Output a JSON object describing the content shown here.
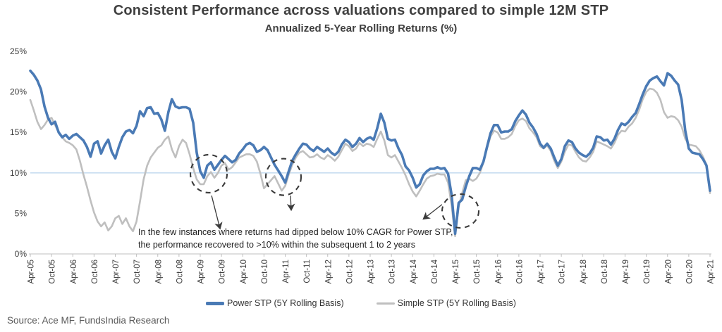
{
  "header": {
    "title": "Consistent Performance across valuations compared to simple 12M STP",
    "subtitle": "Annualized 5-Year Rolling Returns (%)"
  },
  "annotation": {
    "line1": "In the few instances where returns had dipped below 10% CAGR for Power STP,",
    "line2": "the performance recovered to >10% within the subsequent 1 to 2 years"
  },
  "legend": {
    "power_label": "Power STP  (5Y Rolling Basis)",
    "simple_label": "Simple STP (5Y Rolling Basis)"
  },
  "source": "Source: Ace MF, FundsIndia Research",
  "colors": {
    "power": "#4A7AB5",
    "simple": "#BFBFBF",
    "reference_line": "#BDD7EE",
    "axis": "#BFBFBF",
    "text": "#404040",
    "annotation_ink": "#3A3A3A"
  },
  "chart_data": {
    "type": "line",
    "title": "Consistent Performance across valuations compared to simple 12M STP",
    "subtitle": "Annualized 5-Year Rolling Returns (%)",
    "x_unit": "months (monthly observations, Apr-2005 to Apr-2021)",
    "x_tick_labels": [
      "Apr-05",
      "Oct-05",
      "Apr-06",
      "Oct-06",
      "Apr-07",
      "Oct-07",
      "Apr-08",
      "Oct-08",
      "Apr-09",
      "Oct-09",
      "Apr-10",
      "Oct-10",
      "Apr-11",
      "Oct-11",
      "Apr-12",
      "Oct-12",
      "Apr-13",
      "Oct-13",
      "Apr-14",
      "Oct-14",
      "Apr-15",
      "Oct-15",
      "Apr-16",
      "Oct-16",
      "Apr-17",
      "Oct-17",
      "Apr-18",
      "Oct-18",
      "Apr-19",
      "Oct-19",
      "Apr-20",
      "Oct-20",
      "Apr-21"
    ],
    "months_per_tick": 6,
    "y_ticks": [
      0,
      5,
      10,
      15,
      20,
      25
    ],
    "y_tick_suffix": "%",
    "ylim": [
      0,
      25
    ],
    "reference_line_value": 10,
    "grid": "none",
    "legend_position": "bottom",
    "series": [
      {
        "name": "Power STP  (5Y Rolling Basis)",
        "color": "#4A7AB5",
        "stroke_width": 3.6,
        "values": [
          22.6,
          22.1,
          21.4,
          20.3,
          18.2,
          16.8,
          16.0,
          16.3,
          15.0,
          14.4,
          14.7,
          14.2,
          14.6,
          14.8,
          14.4,
          14.0,
          13.2,
          12.0,
          13.6,
          13.9,
          12.4,
          13.4,
          14.1,
          12.6,
          11.8,
          13.2,
          14.4,
          15.1,
          15.3,
          14.9,
          15.8,
          17.6,
          17.0,
          18.0,
          18.1,
          17.3,
          17.4,
          16.6,
          15.2,
          17.5,
          19.1,
          18.2,
          18.0,
          18.1,
          18.1,
          17.9,
          16.2,
          12.5,
          10.2,
          9.4,
          10.9,
          11.3,
          10.4,
          11.0,
          11.6,
          12.1,
          11.7,
          11.3,
          11.6,
          12.4,
          12.9,
          13.5,
          13.7,
          13.4,
          12.6,
          12.8,
          13.2,
          12.8,
          11.9,
          11.0,
          10.3,
          9.6,
          8.8,
          10.2,
          11.5,
          12.3,
          13.0,
          13.6,
          13.5,
          13.0,
          12.7,
          13.2,
          12.9,
          12.6,
          13.0,
          12.5,
          12.2,
          12.6,
          13.5,
          14.1,
          13.8,
          13.2,
          13.6,
          14.3,
          13.8,
          14.2,
          14.4,
          14.1,
          15.5,
          17.3,
          16.2,
          14.2,
          14.0,
          14.1,
          13.0,
          12.2,
          10.8,
          10.3,
          9.4,
          8.2,
          8.6,
          9.7,
          10.2,
          10.5,
          10.5,
          10.7,
          10.5,
          10.6,
          9.9,
          7.3,
          2.5,
          6.3,
          6.7,
          8.3,
          9.6,
          10.6,
          10.6,
          10.4,
          11.4,
          13.2,
          14.9,
          15.9,
          15.9,
          15.0,
          15.1,
          15.1,
          15.4,
          16.4,
          17.1,
          17.7,
          17.2,
          16.2,
          15.6,
          14.8,
          13.6,
          13.1,
          13.6,
          13.0,
          11.9,
          10.9,
          11.7,
          13.3,
          14.0,
          13.8,
          13.0,
          12.5,
          12.2,
          12.0,
          12.4,
          13.1,
          14.5,
          14.4,
          14.0,
          14.1,
          13.5,
          14.2,
          15.3,
          16.1,
          15.9,
          16.3,
          16.9,
          17.4,
          18.5,
          19.7,
          20.7,
          21.4,
          21.7,
          21.9,
          21.3,
          20.8,
          22.3,
          22.0,
          21.4,
          20.9,
          19.0,
          15.2,
          13.0,
          12.5,
          12.4,
          12.3,
          11.7,
          10.9,
          7.8
        ]
      },
      {
        "name": "Simple STP (5Y Rolling Basis)",
        "color": "#BFBFBF",
        "stroke_width": 2.6,
        "values": [
          19.0,
          17.7,
          16.3,
          15.4,
          15.9,
          16.6,
          16.8,
          15.9,
          15.0,
          14.4,
          13.9,
          13.7,
          13.4,
          12.9,
          11.5,
          9.8,
          8.3,
          6.6,
          5.1,
          4.0,
          3.4,
          3.9,
          2.9,
          3.4,
          4.4,
          4.7,
          3.7,
          4.4,
          3.4,
          2.8,
          4.0,
          6.5,
          9.2,
          10.9,
          11.9,
          12.5,
          13.1,
          13.4,
          14.1,
          14.5,
          12.9,
          11.9,
          13.3,
          14.1,
          13.7,
          12.3,
          10.6,
          9.2,
          8.6,
          8.6,
          9.6,
          10.1,
          9.4,
          10.0,
          10.9,
          11.2,
          10.4,
          10.7,
          11.3,
          11.9,
          12.1,
          12.3,
          12.3,
          12.1,
          11.4,
          9.9,
          8.1,
          8.6,
          9.1,
          9.6,
          8.7,
          7.8,
          8.4,
          9.8,
          11.0,
          11.9,
          12.5,
          12.7,
          12.3,
          11.9,
          12.0,
          12.3,
          11.9,
          11.7,
          12.2,
          11.9,
          11.5,
          12.0,
          12.8,
          13.6,
          13.3,
          12.7,
          13.0,
          13.7,
          13.3,
          13.6,
          13.5,
          13.2,
          14.2,
          15.1,
          14.0,
          12.2,
          11.9,
          12.2,
          11.4,
          10.6,
          9.7,
          8.6,
          7.7,
          7.1,
          7.8,
          8.6,
          9.3,
          9.6,
          9.7,
          9.9,
          9.8,
          9.8,
          8.8,
          6.0,
          2.2,
          5.8,
          7.5,
          9.1,
          9.3,
          9.0,
          9.3,
          10.0,
          11.3,
          13.0,
          14.5,
          15.2,
          15.0,
          14.2,
          14.2,
          14.4,
          14.8,
          15.8,
          16.5,
          16.7,
          16.4,
          15.5,
          15.0,
          14.4,
          13.3,
          13.0,
          13.4,
          12.7,
          11.5,
          10.6,
          11.4,
          12.6,
          13.5,
          13.4,
          12.6,
          11.9,
          11.5,
          11.4,
          11.9,
          12.6,
          13.9,
          13.7,
          13.5,
          13.3,
          13.0,
          13.7,
          14.7,
          15.2,
          15.1,
          15.7,
          16.1,
          16.8,
          17.8,
          19.1,
          20.0,
          20.4,
          20.3,
          19.9,
          19.0,
          17.5,
          16.8,
          17.0,
          16.9,
          16.5,
          15.7,
          14.2,
          13.5,
          13.4,
          13.3,
          12.8,
          12.0,
          11.0,
          7.5
        ]
      }
    ],
    "annotations": {
      "circles": [
        {
          "month": 50.4,
          "value": 9.9,
          "rx": 26,
          "ry": 27
        },
        {
          "month": 71.5,
          "value": 9.5,
          "rx": 25,
          "ry": 26
        },
        {
          "month": 121.5,
          "value": 5.3,
          "rx": 26,
          "ry": 24
        }
      ],
      "arrows": [
        {
          "from": {
            "month": 51.2,
            "value": 7.2
          },
          "to": {
            "month": 53.6,
            "value": 3.1
          }
        },
        {
          "from": {
            "month": 73.5,
            "value": 7.2
          },
          "to": {
            "month": 73.7,
            "value": 5.4
          }
        },
        {
          "from": {
            "month": 116.3,
            "value": 6.1
          },
          "to": {
            "month": 111.0,
            "value": 4.3
          }
        }
      ]
    }
  }
}
